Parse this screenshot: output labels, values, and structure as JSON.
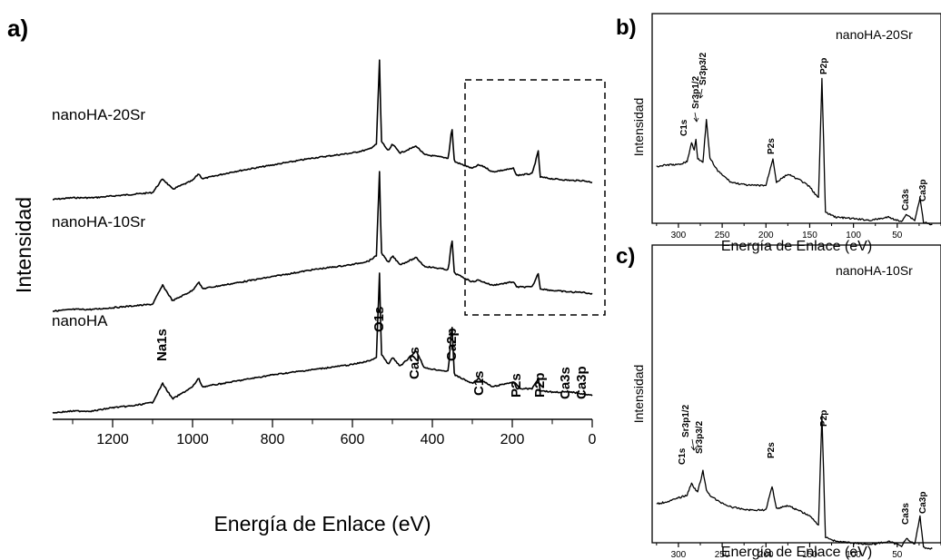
{
  "chart_data": [
    {
      "panel": "a)",
      "type": "line",
      "xlabel": "Energía de Enlace (eV)",
      "ylabel": "Intensidad",
      "xlim": [
        1350,
        0
      ],
      "xticks": [
        1200,
        1000,
        800,
        600,
        400,
        200,
        0
      ],
      "series": [
        {
          "name": "nanoHA-20Sr",
          "x": [
            1350,
            1300,
            1250,
            1200,
            1150,
            1100,
            1075,
            1050,
            1000,
            985,
            975,
            900,
            800,
            700,
            600,
            560,
            540,
            532,
            528,
            510,
            500,
            480,
            440,
            420,
            360,
            351,
            345,
            300,
            285,
            270,
            250,
            196,
            190,
            150,
            135,
            130,
            100,
            50,
            25,
            0
          ],
          "y": [
            0.18,
            0.19,
            0.19,
            0.2,
            0.21,
            0.22,
            0.3,
            0.24,
            0.29,
            0.33,
            0.3,
            0.34,
            0.38,
            0.42,
            0.45,
            0.47,
            0.5,
            1.0,
            0.52,
            0.46,
            0.5,
            0.45,
            0.49,
            0.44,
            0.42,
            0.6,
            0.4,
            0.36,
            0.38,
            0.37,
            0.34,
            0.36,
            0.32,
            0.33,
            0.46,
            0.31,
            0.3,
            0.29,
            0.29,
            0.28
          ]
        },
        {
          "name": "nanoHA-10Sr",
          "x": [
            1350,
            1300,
            1250,
            1200,
            1150,
            1100,
            1075,
            1050,
            1000,
            985,
            975,
            900,
            800,
            700,
            600,
            560,
            540,
            532,
            528,
            510,
            500,
            480,
            440,
            420,
            360,
            351,
            345,
            300,
            285,
            250,
            196,
            190,
            150,
            135,
            130,
            100,
            50,
            25,
            0
          ],
          "y": [
            0.18,
            0.19,
            0.19,
            0.2,
            0.21,
            0.22,
            0.33,
            0.24,
            0.3,
            0.35,
            0.31,
            0.34,
            0.38,
            0.42,
            0.45,
            0.47,
            0.5,
            1.0,
            0.52,
            0.46,
            0.5,
            0.45,
            0.49,
            0.44,
            0.42,
            0.6,
            0.4,
            0.35,
            0.36,
            0.33,
            0.35,
            0.32,
            0.32,
            0.4,
            0.31,
            0.3,
            0.29,
            0.29,
            0.28
          ]
        },
        {
          "name": "nanoHA",
          "x": [
            1350,
            1300,
            1250,
            1200,
            1150,
            1100,
            1075,
            1050,
            1000,
            985,
            975,
            900,
            800,
            700,
            600,
            560,
            540,
            532,
            528,
            510,
            500,
            480,
            440,
            420,
            360,
            351,
            345,
            300,
            285,
            250,
            196,
            190,
            150,
            135,
            130,
            100,
            50,
            25,
            0
          ],
          "y": [
            0.18,
            0.19,
            0.19,
            0.21,
            0.22,
            0.24,
            0.35,
            0.26,
            0.33,
            0.38,
            0.33,
            0.36,
            0.4,
            0.43,
            0.46,
            0.48,
            0.5,
            1.0,
            0.52,
            0.46,
            0.5,
            0.45,
            0.54,
            0.44,
            0.42,
            0.7,
            0.4,
            0.35,
            0.38,
            0.33,
            0.36,
            0.32,
            0.32,
            0.38,
            0.31,
            0.3,
            0.3,
            0.29,
            0.28
          ]
        }
      ],
      "peak_labels": [
        "Na1s",
        "O1s",
        "Ca2s",
        "Ca2p",
        "C1s",
        "P2s",
        "P2p",
        "Ca3s",
        "Ca3p"
      ]
    },
    {
      "panel": "b)",
      "type": "line",
      "title": "nanoHA-20Sr",
      "xlabel": "Energía de Enlace (eV)",
      "ylabel": "Intensidad",
      "xlim": [
        330,
        0
      ],
      "xticks": [
        300,
        250,
        200,
        150,
        100,
        50
      ],
      "series": [
        {
          "x": [
            325,
            310,
            300,
            290,
            285,
            282,
            280,
            278,
            272,
            268,
            264,
            255,
            240,
            220,
            200,
            192,
            188,
            175,
            160,
            150,
            140,
            136,
            132,
            120,
            100,
            80,
            60,
            45,
            40,
            30,
            24,
            20,
            10
          ],
          "y": [
            0.45,
            0.46,
            0.46,
            0.48,
            0.6,
            0.55,
            0.62,
            0.5,
            0.48,
            0.74,
            0.5,
            0.42,
            0.35,
            0.33,
            0.33,
            0.5,
            0.35,
            0.4,
            0.36,
            0.32,
            0.25,
            1.0,
            0.16,
            0.13,
            0.12,
            0.11,
            0.13,
            0.1,
            0.15,
            0.11,
            0.25,
            0.1,
            0.08
          ]
        }
      ],
      "peak_labels": [
        "C1s",
        "Sr3p1/2",
        "Sr3p3/2",
        "P2s",
        "P2p",
        "Ca3s",
        "Ca3p"
      ]
    },
    {
      "panel": "c)",
      "type": "line",
      "title": "nanoHA-10Sr",
      "xlabel": "Energía de Enlace (eV)",
      "ylabel": "Intensidad",
      "xlim": [
        330,
        0
      ],
      "xticks": [
        300,
        250,
        200,
        150,
        100,
        50
      ],
      "series": [
        {
          "x": [
            325,
            310,
            300,
            290,
            285,
            281,
            278,
            272,
            268,
            264,
            255,
            240,
            220,
            200,
            193,
            188,
            175,
            160,
            150,
            140,
            136,
            132,
            120,
            100,
            80,
            60,
            45,
            40,
            30,
            24,
            20,
            10
          ],
          "y": [
            0.38,
            0.4,
            0.42,
            0.44,
            0.52,
            0.48,
            0.46,
            0.6,
            0.47,
            0.44,
            0.4,
            0.36,
            0.34,
            0.34,
            0.5,
            0.35,
            0.37,
            0.33,
            0.3,
            0.24,
            0.97,
            0.16,
            0.13,
            0.12,
            0.11,
            0.13,
            0.1,
            0.15,
            0.11,
            0.3,
            0.09,
            0.08
          ]
        }
      ],
      "peak_labels": [
        "C1s",
        "Sr3p1/2",
        "Sr3p3/2",
        "P2s",
        "P2p",
        "Ca3s",
        "Ca3p"
      ]
    }
  ]
}
